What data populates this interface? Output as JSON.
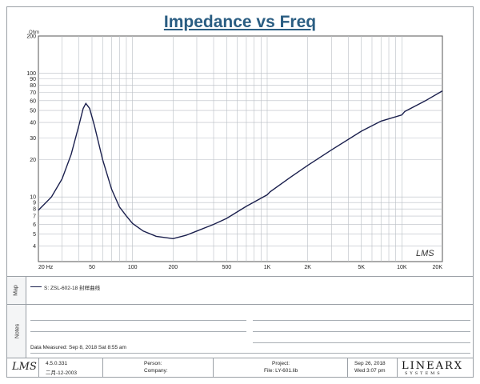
{
  "title": "Impedance vs Freq",
  "chart_data": {
    "type": "line",
    "title": "Impedance vs Freq",
    "xscale": "log",
    "yscale": "log",
    "xlim": [
      20,
      20000
    ],
    "ylim": [
      3,
      200
    ],
    "ylabel": "Ohm",
    "x_ticks": [
      "20 Hz",
      "50",
      "100",
      "200",
      "500",
      "1K",
      "2K",
      "5K",
      "10K",
      "20K"
    ],
    "y_ticks": [
      "200",
      "100",
      "90",
      "80",
      "70",
      "60",
      "50",
      "40",
      "30",
      "20",
      "10",
      "9",
      "8",
      "7",
      "6",
      "5",
      "4"
    ],
    "grid": true,
    "series": [
      {
        "name": "S: ZSL-602-18 封样曲线",
        "color": "#1a1f4d",
        "x": [
          20,
          25,
          30,
          35,
          40,
          43,
          45,
          48,
          52,
          60,
          70,
          80,
          90,
          100,
          120,
          150,
          200,
          250,
          300,
          400,
          500,
          700,
          1000,
          1050,
          1500,
          2000,
          3000,
          5000,
          7000,
          10000,
          10500,
          15000,
          20000
        ],
        "y": [
          7.8,
          10,
          14,
          22,
          38,
          52,
          57,
          52,
          38,
          20,
          11.5,
          8.3,
          7,
          6.1,
          5.3,
          4.8,
          4.6,
          4.9,
          5.3,
          6,
          6.7,
          8.4,
          10.4,
          11,
          14.5,
          18,
          24,
          34,
          41,
          46,
          49,
          60,
          72
        ]
      }
    ]
  },
  "map": {
    "label": "Map",
    "legend_text": "S: ZSL-602-18  封样曲线"
  },
  "notes": {
    "label": "Notes",
    "date_measured": "Data Measured: Sep  8, 2018  Sat  8:55 am"
  },
  "footer": {
    "version": "4.5.0.331",
    "version_date": "二月-12-2003",
    "person_label": "Person:",
    "company_label": "Company:",
    "project_label": "Project:",
    "file_label": "File: LY-601.lib",
    "date": "Sep 26, 2018",
    "time": "Wed  3:07 pm",
    "lms_logo": "LMS",
    "brand": "LINEARX",
    "brand_sub": "SYSTEMS"
  }
}
